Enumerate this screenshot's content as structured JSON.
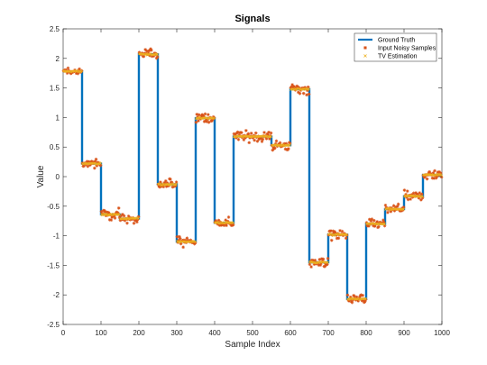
{
  "chart_data": {
    "type": "line",
    "title": "Signals",
    "xlabel": "Sample Index",
    "ylabel": "Value",
    "xlim": [
      0,
      1000
    ],
    "ylim": [
      -2.5,
      2.5
    ],
    "xticks": [
      "0",
      "100",
      "200",
      "300",
      "400",
      "500",
      "600",
      "700",
      "800",
      "900",
      "1000"
    ],
    "yticks": [
      "-2.5",
      "-2",
      "-1.5",
      "-1",
      "-0.5",
      "0",
      "0.5",
      "1",
      "1.5",
      "2",
      "2.5"
    ],
    "grid": false,
    "legend_position": "top-right",
    "segments": [
      {
        "x_start": 0,
        "x_end": 50,
        "value": 1.78
      },
      {
        "x_start": 50,
        "x_end": 100,
        "value": 0.22
      },
      {
        "x_start": 100,
        "x_end": 150,
        "value": -0.64
      },
      {
        "x_start": 150,
        "x_end": 200,
        "value": -0.71
      },
      {
        "x_start": 200,
        "x_end": 250,
        "value": 2.07
      },
      {
        "x_start": 250,
        "x_end": 300,
        "value": -0.13
      },
      {
        "x_start": 300,
        "x_end": 350,
        "value": -1.1
      },
      {
        "x_start": 350,
        "x_end": 400,
        "value": 0.99
      },
      {
        "x_start": 400,
        "x_end": 450,
        "value": -0.78
      },
      {
        "x_start": 450,
        "x_end": 550,
        "value": 0.68
      },
      {
        "x_start": 550,
        "x_end": 600,
        "value": 0.53
      },
      {
        "x_start": 600,
        "x_end": 650,
        "value": 1.48
      },
      {
        "x_start": 650,
        "x_end": 700,
        "value": -1.45
      },
      {
        "x_start": 700,
        "x_end": 750,
        "value": -0.98
      },
      {
        "x_start": 750,
        "x_end": 800,
        "value": -2.07
      },
      {
        "x_start": 800,
        "x_end": 850,
        "value": -0.8
      },
      {
        "x_start": 850,
        "x_end": 900,
        "value": -0.55
      },
      {
        "x_start": 900,
        "x_end": 950,
        "value": -0.33
      },
      {
        "x_start": 950,
        "x_end": 1000,
        "value": 0.03
      }
    ],
    "noise_amplitude": 0.07,
    "series": [
      {
        "name": "Ground Truth",
        "style": "line",
        "color": "#0072BD"
      },
      {
        "name": "Input Noisy Samples",
        "style": "star-markers",
        "color": "#D95319"
      },
      {
        "name": "TV Estimation",
        "style": "x-markers",
        "color": "#EDB120"
      }
    ]
  }
}
